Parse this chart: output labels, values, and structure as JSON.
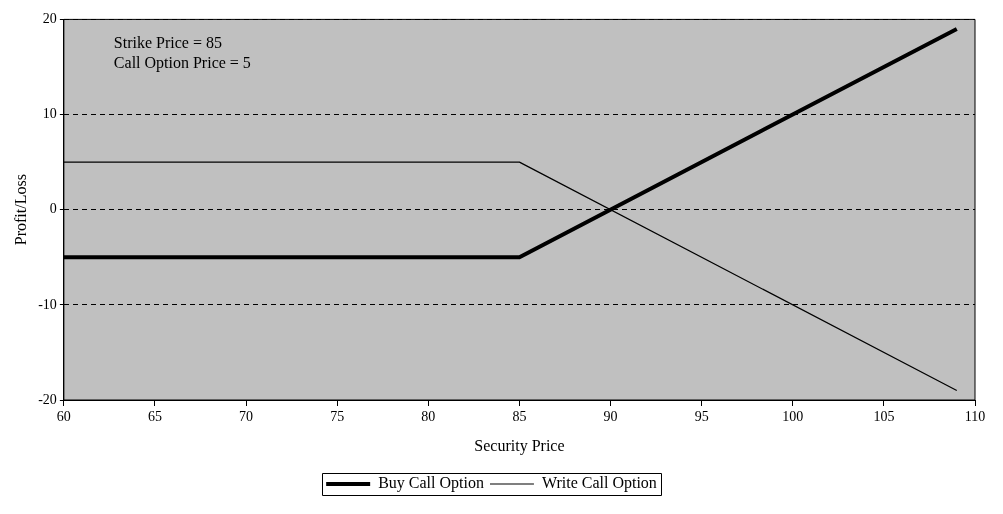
{
  "chart_data": {
    "type": "line",
    "xlabel": "Security Price",
    "ylabel": "Profit/Loss",
    "x": [
      60,
      85,
      109
    ],
    "series": [
      {
        "name": "Buy Call Option",
        "color": "#000000",
        "values": [
          -5,
          -5,
          19
        ]
      },
      {
        "name": "Write Call Option",
        "color": "#000000",
        "values": [
          5,
          5,
          -19
        ]
      }
    ],
    "xlim": [
      60,
      110
    ],
    "xticks": [
      60,
      65,
      70,
      75,
      80,
      85,
      90,
      95,
      100,
      105,
      110
    ],
    "ylim": [
      -20,
      20
    ],
    "yticks": [
      -20,
      -10,
      0,
      10,
      20
    ],
    "grid": "y",
    "legend": "bottom",
    "marker": "none",
    "line_style": "solid",
    "annotations": [
      "Strike Price = 85",
      "Call Option Price = 5"
    ]
  }
}
